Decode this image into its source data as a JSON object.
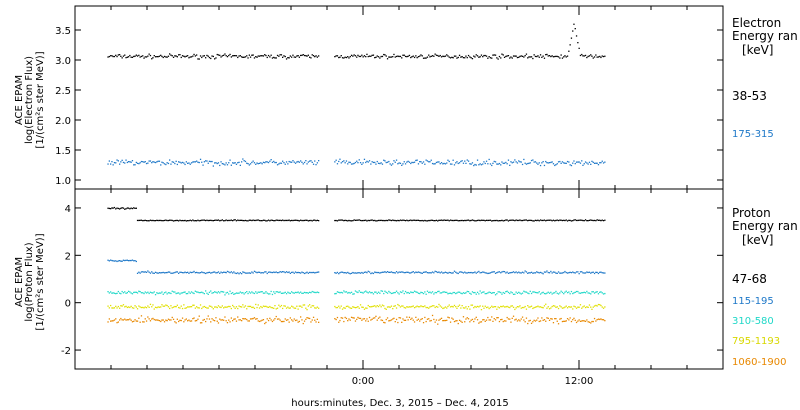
{
  "chart_data": [
    {
      "type": "scatter",
      "panel": "electron",
      "ylabel_lines": [
        "ACE EPAM",
        "log(Electron Flux)",
        "[1/(cm²s ster MeV)]"
      ],
      "ylim": [
        0.85,
        3.9
      ],
      "yticks": [
        1.0,
        1.5,
        2.0,
        2.5,
        3.0,
        3.5
      ],
      "yticklabels": [
        "1.0",
        "1.5",
        "2.0",
        "2.5",
        "3.0",
        "3.5"
      ],
      "legend_title": [
        "Electron",
        "Energy ran"
      ],
      "legend_unit": "[keV]",
      "series": [
        {
          "name": "38-53",
          "color": "#000000",
          "base": 3.07,
          "jitter": 0.05,
          "spike": {
            "at": 11.7,
            "peak": 3.62,
            "width": 0.35
          }
        },
        {
          "name": "175-315",
          "color": "#1e78c8",
          "base": 1.3,
          "jitter": 0.07
        }
      ]
    },
    {
      "type": "scatter",
      "panel": "proton",
      "ylabel_lines": [
        "ACE EPAM",
        "log(Proton Flux)",
        "[1/(cm²s ster MeV)]"
      ],
      "ylim": [
        -2.8,
        4.8
      ],
      "yticks": [
        -2,
        0,
        2,
        4
      ],
      "yticklabels": [
        "-2",
        "0",
        "2",
        "4"
      ],
      "legend_title": [
        "Proton",
        "Energy ran"
      ],
      "legend_unit": "[keV]",
      "series": [
        {
          "name": "47-68",
          "color": "#000000",
          "base": 3.5,
          "jitter": 0.03,
          "early": 4.0
        },
        {
          "name": "115-195",
          "color": "#1e78c8",
          "base": 1.3,
          "jitter": 0.07,
          "early": 1.8
        },
        {
          "name": "310-580",
          "color": "#20d8c8",
          "base": 0.45,
          "jitter": 0.1
        },
        {
          "name": "795-1193",
          "color": "#e0e000",
          "base": -0.15,
          "jitter": 0.14
        },
        {
          "name": "1060-1900",
          "color": "#e88800",
          "base": -0.7,
          "jitter": 0.22
        }
      ]
    }
  ],
  "x_axis": {
    "range_hours": [
      -16,
      20
    ],
    "data_segments": [
      [
        -14.2,
        -2.5
      ],
      [
        -1.6,
        13.4
      ]
    ],
    "major_ticks": [
      0,
      12
    ],
    "major_labels": [
      "0:00",
      "12:00"
    ],
    "minor_ticks": [
      -14,
      -12,
      -10,
      -8,
      -6,
      -4,
      -2,
      2,
      4,
      6,
      8,
      10,
      14,
      16,
      18
    ],
    "caption": "hours:minutes, Dec.  3, 2015 – Dec.  4, 2015"
  }
}
